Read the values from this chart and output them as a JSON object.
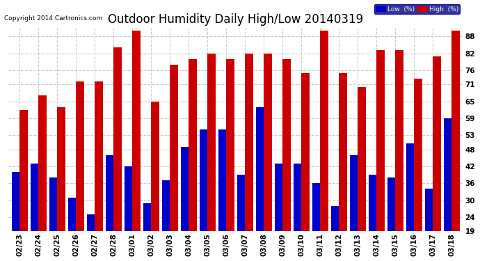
{
  "title": "Outdoor Humidity Daily High/Low 20140319",
  "copyright": "Copyright 2014 Cartronics.com",
  "categories": [
    "02/23",
    "02/24",
    "02/25",
    "02/26",
    "02/27",
    "02/28",
    "03/01",
    "03/02",
    "03/03",
    "03/04",
    "03/05",
    "03/06",
    "03/07",
    "03/08",
    "03/09",
    "03/10",
    "03/11",
    "03/12",
    "03/13",
    "03/14",
    "03/15",
    "03/16",
    "03/17",
    "03/18"
  ],
  "high": [
    62,
    67,
    63,
    72,
    72,
    84,
    90,
    65,
    78,
    80,
    82,
    80,
    82,
    82,
    80,
    75,
    90,
    75,
    70,
    83,
    83,
    73,
    81,
    90
  ],
  "low": [
    40,
    43,
    38,
    31,
    25,
    46,
    42,
    29,
    37,
    49,
    55,
    55,
    39,
    63,
    43,
    43,
    36,
    28,
    46,
    39,
    38,
    50,
    34,
    59
  ],
  "low_color": "#0000cc",
  "high_color": "#cc0000",
  "bg_color": "#ffffff",
  "grid_color": "#cccccc",
  "ylim_min": 19,
  "ylim_max": 91,
  "yticks": [
    19,
    24,
    30,
    36,
    42,
    48,
    53,
    59,
    65,
    71,
    76,
    82,
    88
  ],
  "bar_width": 0.42,
  "title_fontsize": 12,
  "tick_fontsize": 7.5,
  "legend_low_label": "Low  (%)",
  "legend_high_label": "High  (%)",
  "figwidth": 6.9,
  "figheight": 3.75,
  "dpi": 100
}
